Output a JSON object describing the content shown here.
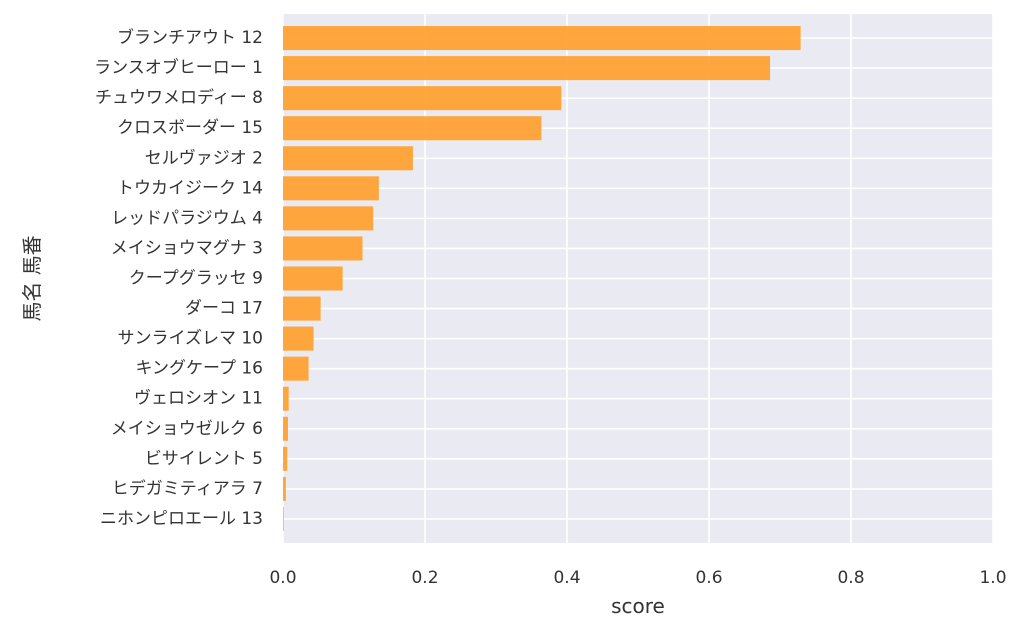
{
  "chart_data": {
    "type": "bar",
    "orientation": "horizontal",
    "categories": [
      "ブランチアウト 12",
      "ランスオブヒーロー 1",
      "チュウワメロディー 8",
      "クロスボーダー 15",
      "セルヴァジオ 2",
      "トウカイジーク 14",
      "レッドパラジウム 4",
      "メイショウマグナ 3",
      "クープグラッセ 9",
      "ダーコ 17",
      "サンライズレマ 10",
      "キングケープ 16",
      "ヴェロシオン 11",
      "メイショウゼルク 6",
      "ビサイレント 5",
      "ヒデガミティアラ 7",
      "ニホンピロエール 13"
    ],
    "values": [
      0.729,
      0.686,
      0.392,
      0.364,
      0.183,
      0.135,
      0.127,
      0.112,
      0.084,
      0.053,
      0.043,
      0.036,
      0.008,
      0.007,
      0.006,
      0.004,
      0.001
    ],
    "xlabel": "score",
    "ylabel": "馬名 馬番",
    "xlim": [
      0,
      1.0
    ],
    "xticks": [
      "0.0",
      "0.2",
      "0.4",
      "0.6",
      "0.8",
      "1.0"
    ],
    "grid": true,
    "colors": {
      "bar": "#ff9f2e",
      "plot_background": "#eaeaf2",
      "grid": "#ffffff",
      "text": "#333333"
    }
  }
}
